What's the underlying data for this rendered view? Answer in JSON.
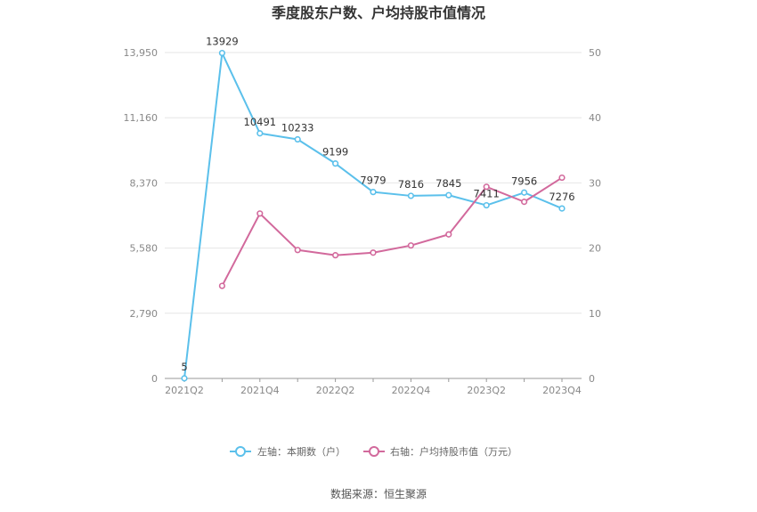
{
  "title": "季度股东户数、户均持股市值情况",
  "source": "数据来源：恒生聚源",
  "colors": {
    "left": "#5bc0eb",
    "right": "#d2699c",
    "grid": "#e6e6e6",
    "axis": "#999999"
  },
  "legend": {
    "left": "左轴：本期数（户）",
    "right": "右轴：户均持股市值（万元）"
  },
  "chart_data": {
    "type": "line",
    "x": [
      "2021Q2",
      "2021Q3",
      "2021Q4",
      "2022Q1",
      "2022Q2",
      "2022Q3",
      "2022Q4",
      "2023Q1",
      "2023Q2",
      "2023Q3",
      "2023Q4"
    ],
    "x_tick_labels": [
      "2021Q2",
      "2021Q4",
      "2022Q2",
      "2022Q4",
      "2023Q2",
      "2023Q4"
    ],
    "left_axis": {
      "ticks": [
        0,
        2790,
        5580,
        8370,
        11160,
        13950
      ],
      "tick_labels": [
        "0",
        "2,790",
        "5,580",
        "8,370",
        "11,160",
        "13,950"
      ],
      "range": [
        0,
        13950
      ]
    },
    "right_axis": {
      "ticks": [
        0,
        10,
        20,
        30,
        40,
        50
      ],
      "tick_labels": [
        "0",
        "10",
        "20",
        "30",
        "40",
        "50"
      ],
      "range": [
        0,
        50
      ]
    },
    "series": [
      {
        "name": "左轴：本期数（户）",
        "axis": "left",
        "labeled": true,
        "values": [
          5,
          13929,
          10491,
          10233,
          9199,
          7979,
          7816,
          7845,
          7411,
          7956,
          7276
        ]
      },
      {
        "name": "右轴：户均持股市值（万元）",
        "axis": "right",
        "labeled": false,
        "values": [
          null,
          14.2,
          25.3,
          19.7,
          18.9,
          19.3,
          20.4,
          22.1,
          29.4,
          27.1,
          30.8
        ]
      }
    ],
    "grid": true
  }
}
